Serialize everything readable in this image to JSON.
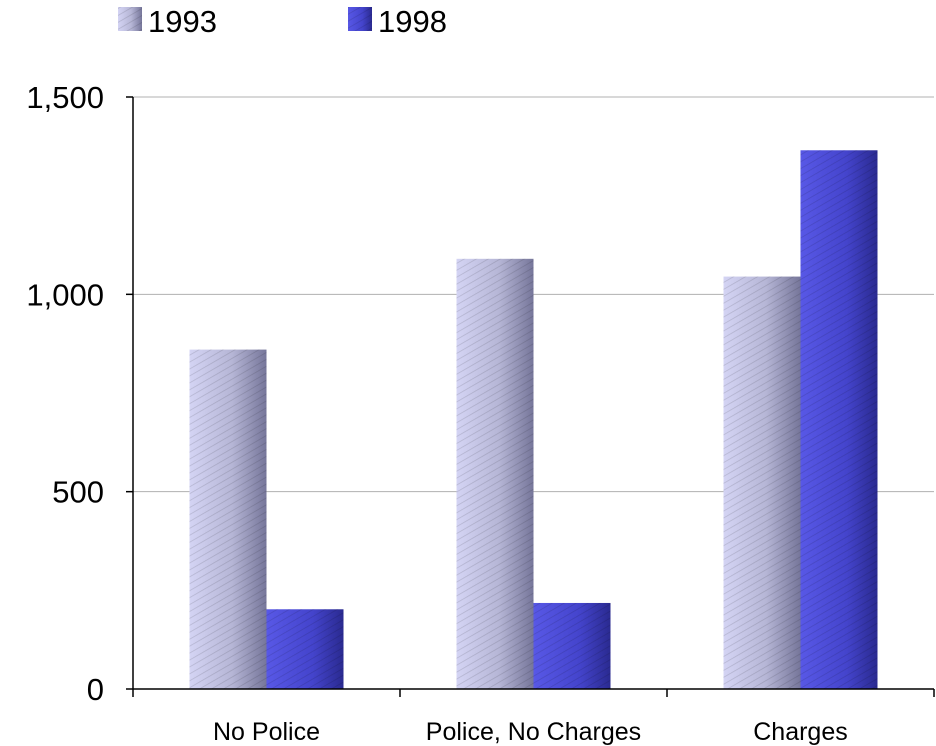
{
  "chart_data": {
    "type": "bar",
    "categories": [
      "No Police",
      "Police, No Charges",
      "Charges"
    ],
    "series": [
      {
        "name": "1993",
        "values": [
          860,
          1090,
          1045
        ],
        "color": "#c8c8ee"
      },
      {
        "name": "1998",
        "values": [
          202,
          218,
          1365
        ],
        "color": "#4a4ad8"
      }
    ],
    "yticks": [
      "0",
      "500",
      "1,000",
      "1,500"
    ],
    "ylim": [
      0,
      1500
    ],
    "grid": true,
    "legend": "top-left",
    "title": "",
    "xlabel": "",
    "ylabel": ""
  }
}
